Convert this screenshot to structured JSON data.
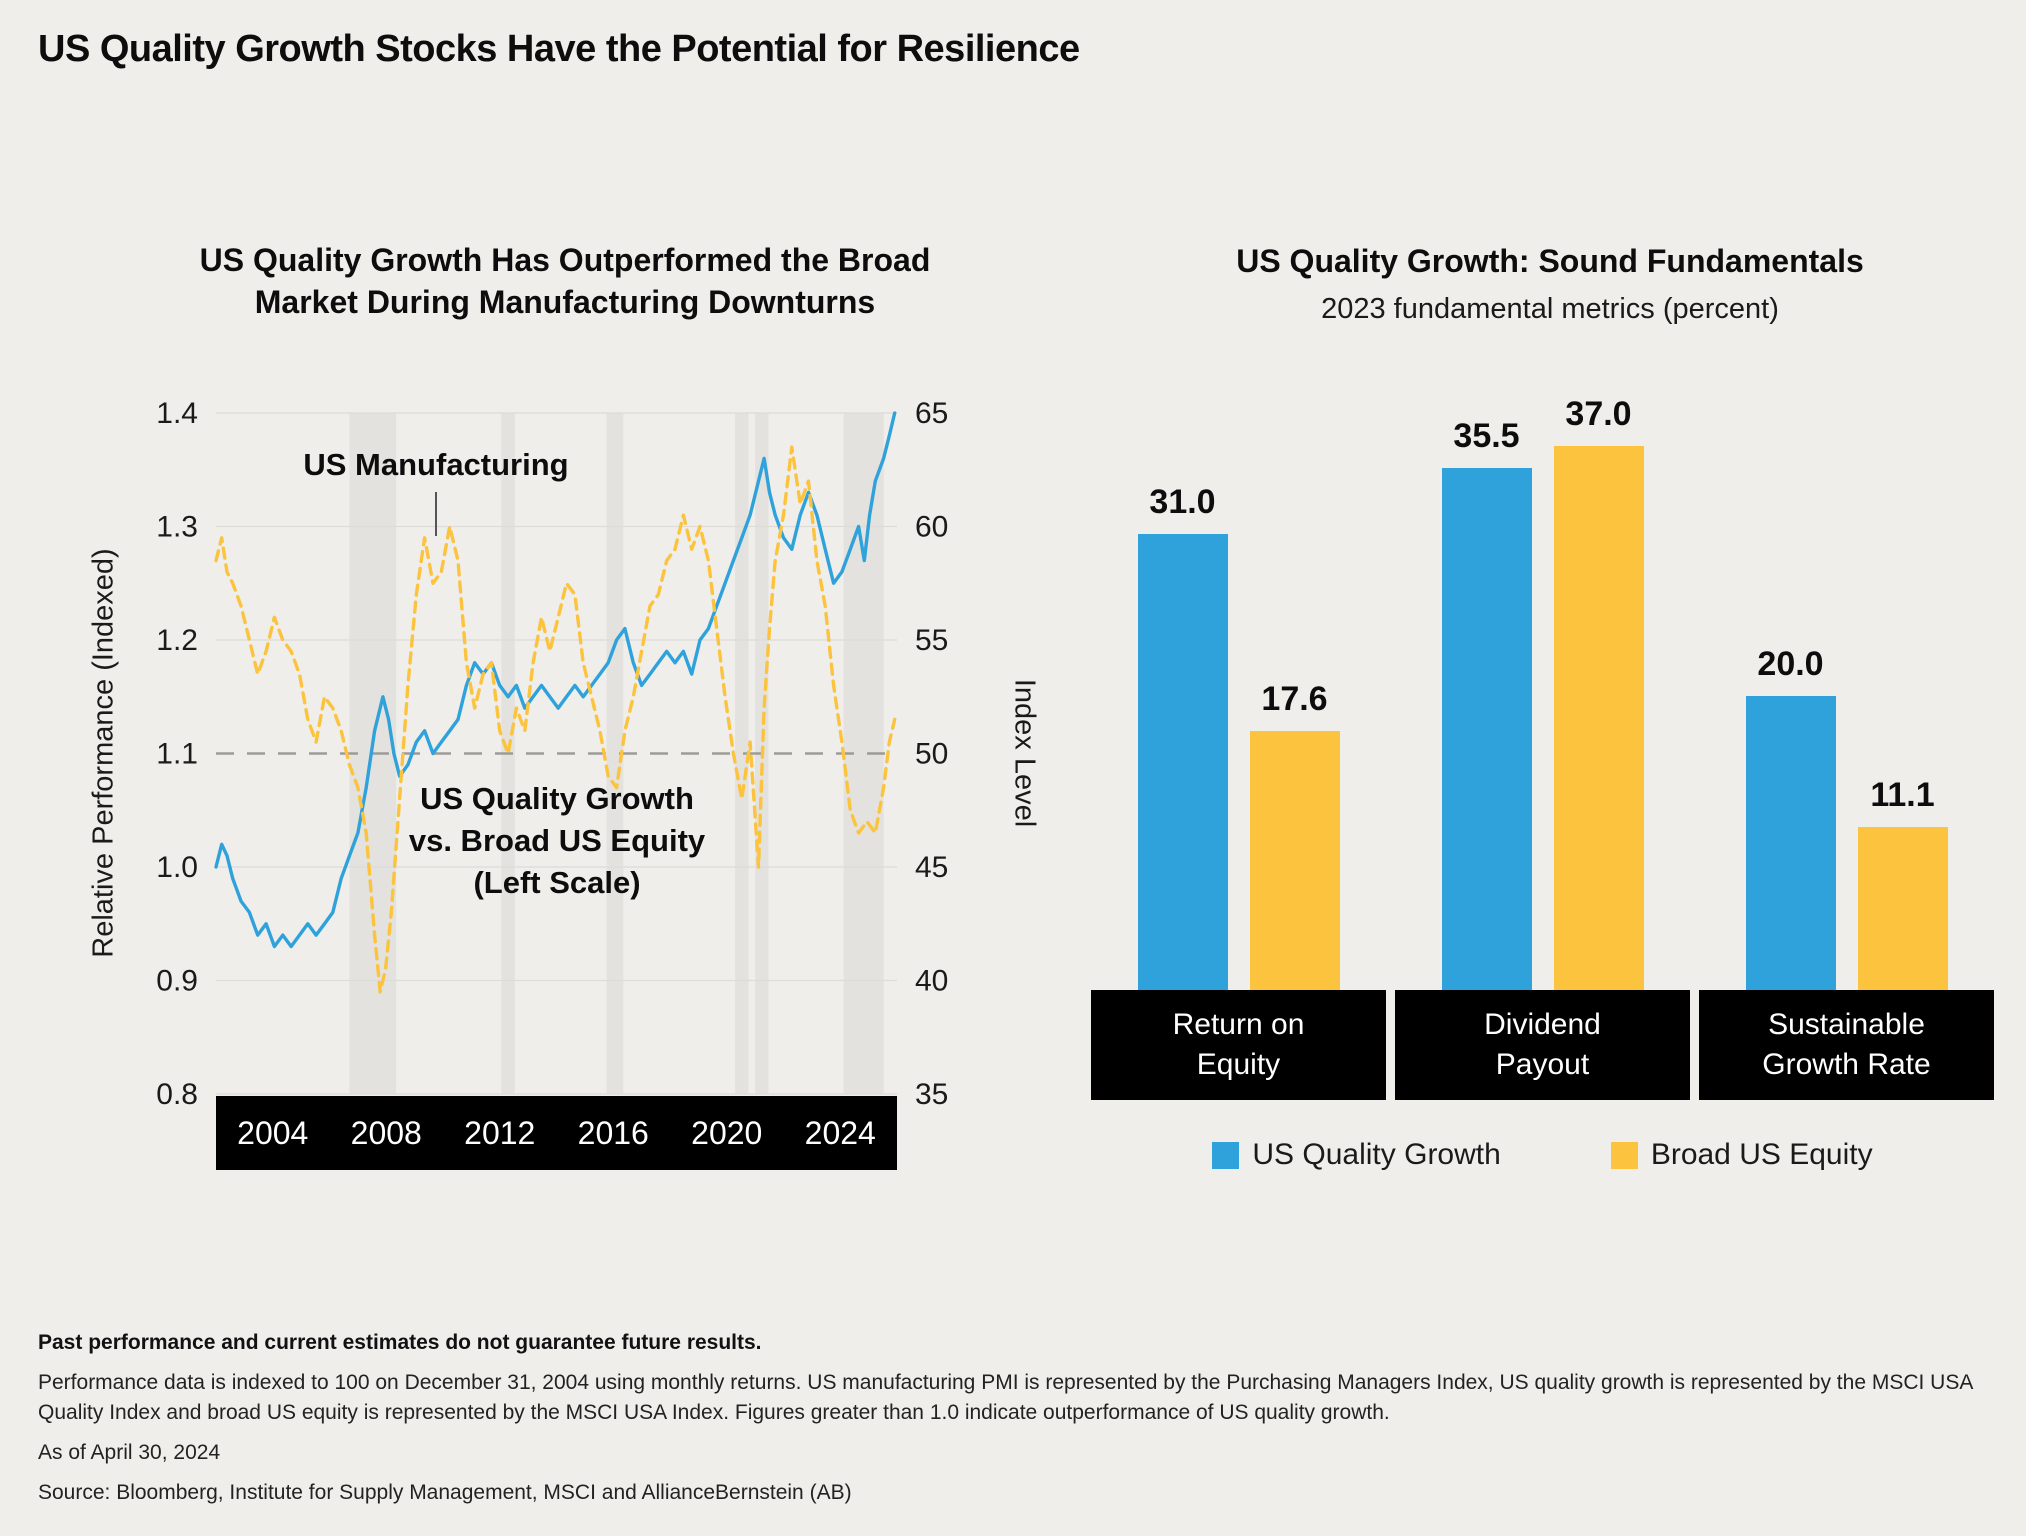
{
  "page": {
    "title": "US Quality Growth Stocks Have the Potential for Resilience"
  },
  "colors": {
    "blue": "#2fa2db",
    "yellow": "#fbc33e",
    "black": "#000000",
    "grid": "#dddcd8",
    "band": "#e3e2de",
    "reference": "#9b9b98",
    "pointer": "#555555"
  },
  "chart_data": [
    {
      "type": "line",
      "title": "US Quality Growth Has Outperformed the Broad\nMarket During Manufacturing Downturns",
      "ylabel_left": "Relative Performance (Indexed)",
      "ylabel_right": "Index Level",
      "ylim_left": [
        0.8,
        1.4
      ],
      "ylim_right": [
        35,
        65
      ],
      "xlim": [
        2004,
        2024.4
      ],
      "x_tick_labels": [
        "2004",
        "2008",
        "2012",
        "2016",
        "2020",
        "2024"
      ],
      "left_tick_labels": [
        "1.4",
        "1.3",
        "1.2",
        "1.1",
        "1.0",
        "0.9",
        "0.8"
      ],
      "right_tick_labels": [
        "65",
        "60",
        "55",
        "50",
        "45",
        "40",
        "35"
      ],
      "reference_line_left": 1.1,
      "annotations": {
        "manufacturing": "US Manufacturing",
        "quality": "US Quality Growth\nvs. Broad US Equity\n(Left Scale)"
      },
      "downturn_bands": [
        [
          2008.0,
          2009.4
        ],
        [
          2012.55,
          2012.95
        ],
        [
          2015.7,
          2016.2
        ],
        [
          2019.55,
          2019.95
        ],
        [
          2020.15,
          2020.55
        ],
        [
          2022.8,
          2024.0
        ]
      ],
      "series": [
        {
          "id": "us-quality-growth-relative",
          "name": "US Quality Growth vs. Broad US Equity (Left Scale)",
          "axis": "left",
          "style": "solid",
          "color_key": "blue",
          "points": [
            [
              2004.0,
              1.0
            ],
            [
              2004.17,
              1.02
            ],
            [
              2004.33,
              1.01
            ],
            [
              2004.5,
              0.99
            ],
            [
              2004.75,
              0.97
            ],
            [
              2005.0,
              0.96
            ],
            [
              2005.25,
              0.94
            ],
            [
              2005.5,
              0.95
            ],
            [
              2005.75,
              0.93
            ],
            [
              2006.0,
              0.94
            ],
            [
              2006.25,
              0.93
            ],
            [
              2006.5,
              0.94
            ],
            [
              2006.75,
              0.95
            ],
            [
              2007.0,
              0.94
            ],
            [
              2007.25,
              0.95
            ],
            [
              2007.5,
              0.96
            ],
            [
              2007.75,
              0.99
            ],
            [
              2008.0,
              1.01
            ],
            [
              2008.25,
              1.03
            ],
            [
              2008.5,
              1.07
            ],
            [
              2008.75,
              1.12
            ],
            [
              2009.0,
              1.15
            ],
            [
              2009.17,
              1.13
            ],
            [
              2009.33,
              1.1
            ],
            [
              2009.5,
              1.08
            ],
            [
              2009.75,
              1.09
            ],
            [
              2010.0,
              1.11
            ],
            [
              2010.25,
              1.12
            ],
            [
              2010.5,
              1.1
            ],
            [
              2010.75,
              1.11
            ],
            [
              2011.0,
              1.12
            ],
            [
              2011.25,
              1.13
            ],
            [
              2011.5,
              1.16
            ],
            [
              2011.75,
              1.18
            ],
            [
              2012.0,
              1.17
            ],
            [
              2012.25,
              1.18
            ],
            [
              2012.5,
              1.16
            ],
            [
              2012.75,
              1.15
            ],
            [
              2013.0,
              1.16
            ],
            [
              2013.25,
              1.14
            ],
            [
              2013.5,
              1.15
            ],
            [
              2013.75,
              1.16
            ],
            [
              2014.0,
              1.15
            ],
            [
              2014.25,
              1.14
            ],
            [
              2014.5,
              1.15
            ],
            [
              2014.75,
              1.16
            ],
            [
              2015.0,
              1.15
            ],
            [
              2015.25,
              1.16
            ],
            [
              2015.5,
              1.17
            ],
            [
              2015.75,
              1.18
            ],
            [
              2016.0,
              1.2
            ],
            [
              2016.25,
              1.21
            ],
            [
              2016.5,
              1.18
            ],
            [
              2016.75,
              1.16
            ],
            [
              2017.0,
              1.17
            ],
            [
              2017.25,
              1.18
            ],
            [
              2017.5,
              1.19
            ],
            [
              2017.75,
              1.18
            ],
            [
              2018.0,
              1.19
            ],
            [
              2018.25,
              1.17
            ],
            [
              2018.5,
              1.2
            ],
            [
              2018.75,
              1.21
            ],
            [
              2019.0,
              1.23
            ],
            [
              2019.25,
              1.25
            ],
            [
              2019.5,
              1.27
            ],
            [
              2019.75,
              1.29
            ],
            [
              2020.0,
              1.31
            ],
            [
              2020.25,
              1.34
            ],
            [
              2020.42,
              1.36
            ],
            [
              2020.58,
              1.33
            ],
            [
              2020.75,
              1.31
            ],
            [
              2021.0,
              1.29
            ],
            [
              2021.25,
              1.28
            ],
            [
              2021.5,
              1.31
            ],
            [
              2021.75,
              1.33
            ],
            [
              2022.0,
              1.31
            ],
            [
              2022.25,
              1.28
            ],
            [
              2022.5,
              1.25
            ],
            [
              2022.75,
              1.26
            ],
            [
              2023.0,
              1.28
            ],
            [
              2023.25,
              1.3
            ],
            [
              2023.42,
              1.27
            ],
            [
              2023.58,
              1.31
            ],
            [
              2023.75,
              1.34
            ],
            [
              2024.0,
              1.36
            ],
            [
              2024.17,
              1.38
            ],
            [
              2024.33,
              1.4
            ]
          ]
        },
        {
          "id": "us-manufacturing-pmi",
          "name": "US Manufacturing",
          "axis": "right",
          "style": "dashed",
          "color_key": "yellow",
          "points": [
            [
              2004.0,
              58.5
            ],
            [
              2004.17,
              59.5
            ],
            [
              2004.33,
              58.0
            ],
            [
              2004.5,
              57.5
            ],
            [
              2004.75,
              56.5
            ],
            [
              2005.0,
              55.0
            ],
            [
              2005.25,
              53.5
            ],
            [
              2005.5,
              54.5
            ],
            [
              2005.75,
              56.0
            ],
            [
              2006.0,
              55.0
            ],
            [
              2006.25,
              54.5
            ],
            [
              2006.5,
              53.5
            ],
            [
              2006.75,
              51.5
            ],
            [
              2007.0,
              50.5
            ],
            [
              2007.25,
              52.5
            ],
            [
              2007.5,
              52.0
            ],
            [
              2007.75,
              51.0
            ],
            [
              2008.0,
              49.5
            ],
            [
              2008.25,
              48.5
            ],
            [
              2008.5,
              46.5
            ],
            [
              2008.75,
              42.0
            ],
            [
              2008.92,
              39.5
            ],
            [
              2009.08,
              40.5
            ],
            [
              2009.25,
              43.0
            ],
            [
              2009.5,
              48.0
            ],
            [
              2009.75,
              53.0
            ],
            [
              2010.0,
              57.0
            ],
            [
              2010.25,
              59.5
            ],
            [
              2010.5,
              57.5
            ],
            [
              2010.75,
              58.0
            ],
            [
              2011.0,
              60.0
            ],
            [
              2011.25,
              58.5
            ],
            [
              2011.5,
              54.0
            ],
            [
              2011.75,
              52.0
            ],
            [
              2012.0,
              53.5
            ],
            [
              2012.25,
              54.0
            ],
            [
              2012.5,
              51.0
            ],
            [
              2012.75,
              50.0
            ],
            [
              2013.0,
              52.0
            ],
            [
              2013.25,
              51.0
            ],
            [
              2013.5,
              54.0
            ],
            [
              2013.75,
              56.0
            ],
            [
              2014.0,
              54.5
            ],
            [
              2014.25,
              56.0
            ],
            [
              2014.5,
              57.5
            ],
            [
              2014.75,
              57.0
            ],
            [
              2015.0,
              54.0
            ],
            [
              2015.25,
              52.5
            ],
            [
              2015.5,
              51.0
            ],
            [
              2015.75,
              49.0
            ],
            [
              2016.0,
              48.5
            ],
            [
              2016.25,
              51.0
            ],
            [
              2016.5,
              52.5
            ],
            [
              2016.75,
              54.5
            ],
            [
              2017.0,
              56.5
            ],
            [
              2017.25,
              57.0
            ],
            [
              2017.5,
              58.5
            ],
            [
              2017.75,
              59.0
            ],
            [
              2018.0,
              60.5
            ],
            [
              2018.25,
              59.0
            ],
            [
              2018.5,
              60.0
            ],
            [
              2018.75,
              58.5
            ],
            [
              2019.0,
              55.5
            ],
            [
              2019.25,
              52.5
            ],
            [
              2019.5,
              50.0
            ],
            [
              2019.75,
              48.0
            ],
            [
              2020.0,
              50.5
            ],
            [
              2020.25,
              45.0
            ],
            [
              2020.42,
              52.0
            ],
            [
              2020.58,
              55.5
            ],
            [
              2020.75,
              58.5
            ],
            [
              2021.0,
              60.5
            ],
            [
              2021.25,
              63.5
            ],
            [
              2021.5,
              61.0
            ],
            [
              2021.75,
              62.0
            ],
            [
              2022.0,
              58.5
            ],
            [
              2022.25,
              56.5
            ],
            [
              2022.5,
              53.0
            ],
            [
              2022.75,
              50.5
            ],
            [
              2023.0,
              47.5
            ],
            [
              2023.25,
              46.5
            ],
            [
              2023.5,
              47.0
            ],
            [
              2023.75,
              46.5
            ],
            [
              2024.0,
              48.5
            ],
            [
              2024.17,
              50.5
            ],
            [
              2024.33,
              51.5
            ]
          ]
        }
      ]
    },
    {
      "type": "bar",
      "title": "US Quality Growth: Sound Fundamentals",
      "subtitle": "2023 fundamental metrics (percent)",
      "categories": [
        "Return on\nEquity",
        "Dividend\nPayout",
        "Sustainable\nGrowth Rate"
      ],
      "series": [
        {
          "id": "us-quality-growth",
          "name": "US Quality Growth",
          "color_key": "blue",
          "values": [
            31.0,
            35.5,
            20.0
          ]
        },
        {
          "id": "broad-us-equity",
          "name": "Broad US Equity",
          "color_key": "yellow",
          "values": [
            17.6,
            37.0,
            11.1
          ]
        }
      ],
      "ylim": [
        0,
        40
      ],
      "legend_position": "bottom"
    }
  ],
  "footnotes": {
    "disclaimer": "Past performance and current estimates do not guarantee future results.",
    "methodology": "Performance data is indexed to 100 on December 31, 2004 using monthly returns. US manufacturing PMI is represented by the Purchasing Managers Index, US quality growth is represented by the MSCI USA Quality Index and broad US equity is represented by the MSCI USA Index. Figures greater than 1.0 indicate outperformance of US quality growth.",
    "as_of": "As of April 30, 2024",
    "source": "Source: Bloomberg, Institute for Supply Management, MSCI and AllianceBernstein (AB)"
  }
}
